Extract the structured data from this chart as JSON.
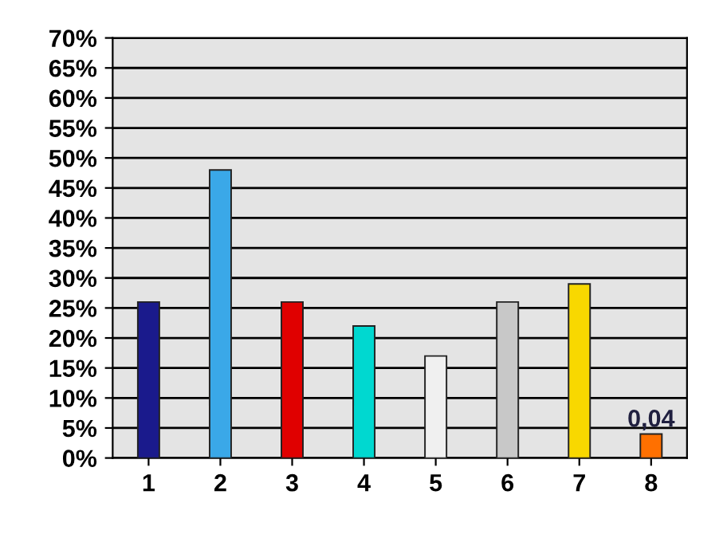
{
  "chart_data": {
    "type": "bar",
    "categories": [
      "1",
      "2",
      "3",
      "4",
      "5",
      "6",
      "7",
      "8"
    ],
    "values": [
      0.26,
      0.48,
      0.26,
      0.22,
      0.17,
      0.26,
      0.29,
      0.04
    ],
    "colors": [
      "#1a1a8c",
      "#3aa8e8",
      "#e00000",
      "#00d8d0",
      "#f0f0f0",
      "#c8c8c8",
      "#f8d800",
      "#ff7000"
    ],
    "value_labels": [
      null,
      null,
      null,
      null,
      null,
      null,
      null,
      "0,04"
    ],
    "ylim": [
      0,
      0.7
    ],
    "yticks": [
      {
        "value": 0,
        "label": "0%"
      },
      {
        "value": 0.05,
        "label": "5%"
      },
      {
        "value": 0.1,
        "label": "10%"
      },
      {
        "value": 0.15,
        "label": "15%"
      },
      {
        "value": 0.2,
        "label": "20%"
      },
      {
        "value": 0.25,
        "label": "25%"
      },
      {
        "value": 0.3,
        "label": "30%"
      },
      {
        "value": 0.35,
        "label": "35%"
      },
      {
        "value": 0.4,
        "label": "40%"
      },
      {
        "value": 0.45,
        "label": "45%"
      },
      {
        "value": 0.5,
        "label": "50%"
      },
      {
        "value": 0.55,
        "label": "55%"
      },
      {
        "value": 0.6,
        "label": "60%"
      },
      {
        "value": 0.65,
        "label": "65%"
      },
      {
        "value": 0.7,
        "label": "70%"
      }
    ],
    "grid": "y",
    "legend": false
  }
}
